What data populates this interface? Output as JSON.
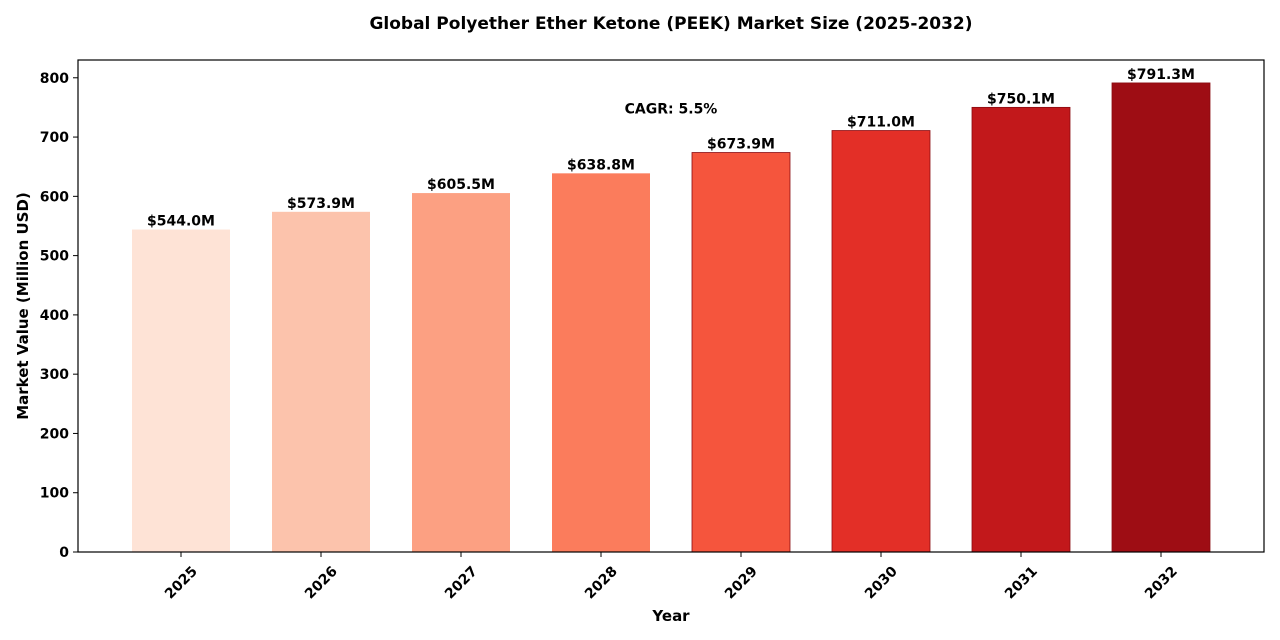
{
  "chart_data": {
    "type": "bar",
    "title": "Global Polyether Ether Ketone (PEEK) Market Size (2025-2032)",
    "xlabel": "Year",
    "ylabel": "Market Value (Million USD)",
    "categories": [
      "2025",
      "2026",
      "2027",
      "2028",
      "2029",
      "2030",
      "2031",
      "2032"
    ],
    "values": [
      544.0,
      573.9,
      605.5,
      638.8,
      673.9,
      711.0,
      750.1,
      791.3
    ],
    "data_labels": [
      "$544.0M",
      "$573.9M",
      "$605.5M",
      "$638.8M",
      "$673.9M",
      "$711.0M",
      "$750.1M",
      "$791.3M"
    ],
    "bar_colors": [
      "#fee3d6",
      "#fcc3ac",
      "#fca082",
      "#fb7c5c",
      "#f5553d",
      "#e32f27",
      "#c2181b",
      "#9e0d14"
    ],
    "ylim": [
      0,
      830
    ],
    "yticks": [
      0,
      100,
      200,
      300,
      400,
      500,
      600,
      700,
      800
    ],
    "grid": false,
    "legend": "none",
    "annotation": {
      "text": "CAGR: 5.5%"
    }
  }
}
